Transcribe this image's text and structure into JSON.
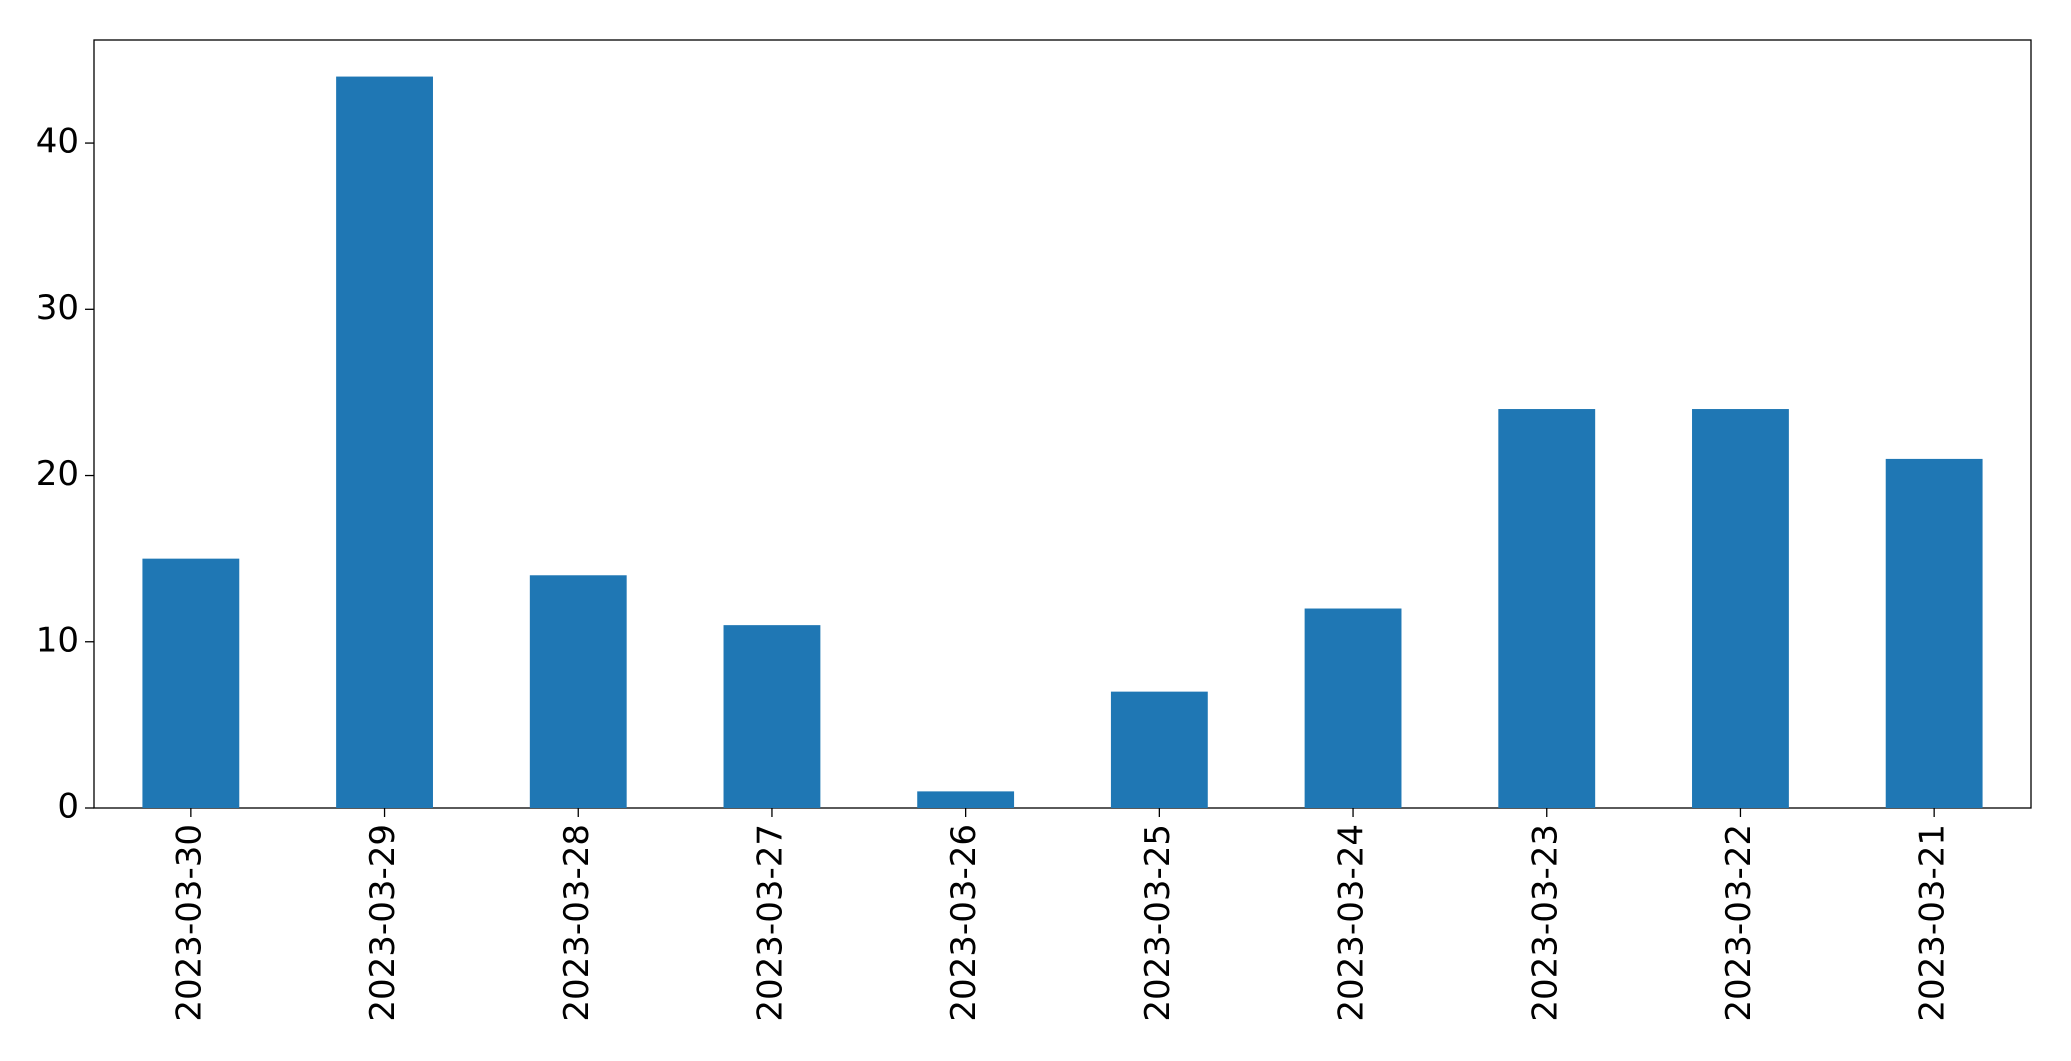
{
  "chart_data": {
    "type": "bar",
    "categories": [
      "2023-03-30",
      "2023-03-29",
      "2023-03-28",
      "2023-03-27",
      "2023-03-26",
      "2023-03-25",
      "2023-03-24",
      "2023-03-23",
      "2023-03-22",
      "2023-03-21"
    ],
    "values": [
      15,
      44,
      14,
      11,
      1,
      7,
      12,
      24,
      24,
      21
    ],
    "color": "#1f77b4",
    "ylim": [
      0,
      46.2
    ],
    "yticks": [
      0,
      10,
      20,
      30,
      40
    ],
    "grid": false
  }
}
